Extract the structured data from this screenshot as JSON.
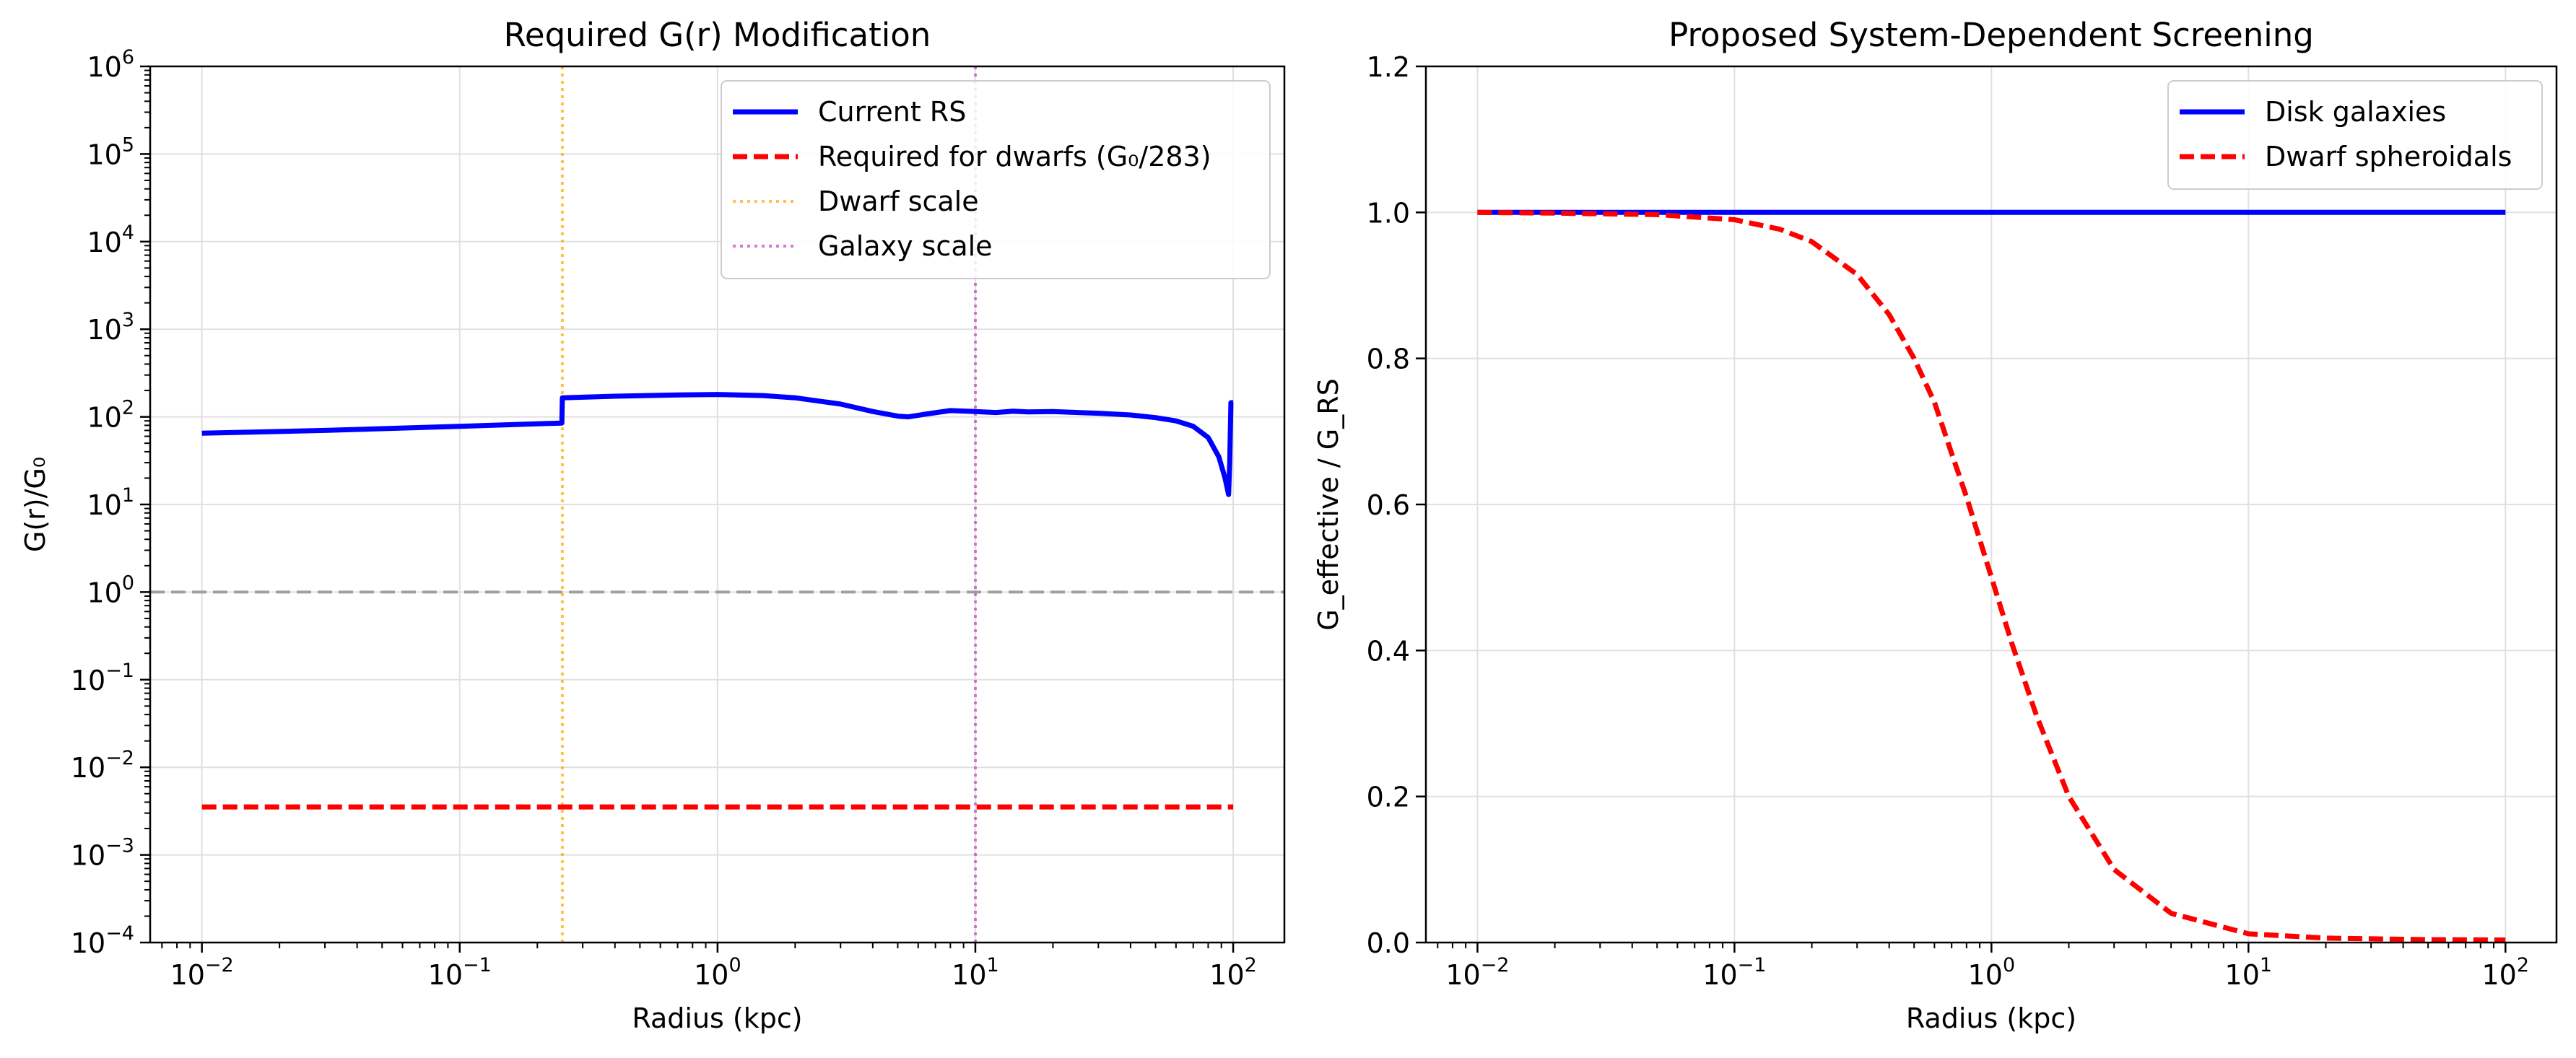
{
  "figure": {
    "background": "#ffffff"
  },
  "chart_data": [
    {
      "type": "line",
      "title": "Required G(r) Modification",
      "xlabel": "Radius (kpc)",
      "ylabel": "G(r)/G₀",
      "xscale": "log",
      "yscale": "log",
      "xlim": [
        0.0063,
        158
      ],
      "ylim": [
        0.0001,
        1000000
      ],
      "grid": true,
      "legend_position": "top-right",
      "xticks": [
        {
          "value": 0.01,
          "base": "10",
          "exp": "−2"
        },
        {
          "value": 0.1,
          "base": "10",
          "exp": "−1"
        },
        {
          "value": 1,
          "base": "10",
          "exp": "0"
        },
        {
          "value": 10,
          "base": "10",
          "exp": "1"
        },
        {
          "value": 100,
          "base": "10",
          "exp": "2"
        }
      ],
      "yticks": [
        {
          "value": 0.0001,
          "base": "10",
          "exp": "−4"
        },
        {
          "value": 0.001,
          "base": "10",
          "exp": "−3"
        },
        {
          "value": 0.01,
          "base": "10",
          "exp": "−2"
        },
        {
          "value": 0.1,
          "base": "10",
          "exp": "−1"
        },
        {
          "value": 1,
          "base": "10",
          "exp": "0"
        },
        {
          "value": 10,
          "base": "10",
          "exp": "1"
        },
        {
          "value": 100,
          "base": "10",
          "exp": "2"
        },
        {
          "value": 1000,
          "base": "10",
          "exp": "3"
        },
        {
          "value": 10000,
          "base": "10",
          "exp": "4"
        },
        {
          "value": 100000,
          "base": "10",
          "exp": "5"
        },
        {
          "value": 1000000,
          "base": "10",
          "exp": "6"
        }
      ],
      "series": [
        {
          "name": "Current RS",
          "color": "#0000ff",
          "style": "solid",
          "x": [
            0.01,
            0.03,
            0.1,
            0.249,
            0.25,
            0.4,
            0.7,
            1.0,
            1.5,
            2.0,
            3.0,
            4.0,
            5.0,
            5.5,
            6.5,
            8.0,
            10.0,
            12.0,
            14.0,
            16.0,
            20.0,
            25.0,
            30.0,
            40.0,
            50.0,
            60.0,
            70.0,
            80.0,
            88.0,
            93.0,
            96.0,
            97.0,
            98.0,
            100.0
          ],
          "y": [
            65,
            70,
            78,
            85,
            165,
            172,
            178,
            180,
            175,
            165,
            140,
            115,
            102,
            100,
            108,
            118,
            115,
            112,
            116,
            114,
            115,
            112,
            110,
            105,
            98,
            90,
            78,
            58,
            35,
            20,
            13,
            30,
            145,
            145
          ]
        },
        {
          "name": "Required for dwarfs (G₀/283)",
          "color": "#ff0000",
          "style": "dashed",
          "x": [
            0.01,
            100.0
          ],
          "y": [
            0.00353,
            0.00353
          ]
        }
      ],
      "reference_lines": [
        {
          "orientation": "vertical",
          "name": "Dwarf scale",
          "x": 0.25,
          "color": "#ffa500",
          "style": "dotted",
          "in_legend": true
        },
        {
          "orientation": "vertical",
          "name": "Galaxy scale",
          "x": 10,
          "color": "#bf40bf",
          "style": "dotted",
          "in_legend": true
        },
        {
          "orientation": "horizontal",
          "y": 1,
          "color": "#808080",
          "style": "dashed",
          "in_legend": false
        }
      ]
    },
    {
      "type": "line",
      "title": "Proposed System-Dependent Screening",
      "xlabel": "Radius (kpc)",
      "ylabel": "G_effective / G_RS",
      "xscale": "log",
      "yscale": "linear",
      "xlim": [
        0.0063,
        158
      ],
      "ylim": [
        0,
        1.2
      ],
      "grid": true,
      "legend_position": "top-right",
      "xticks": [
        {
          "value": 0.01,
          "base": "10",
          "exp": "−2"
        },
        {
          "value": 0.1,
          "base": "10",
          "exp": "−1"
        },
        {
          "value": 1,
          "base": "10",
          "exp": "0"
        },
        {
          "value": 10,
          "base": "10",
          "exp": "1"
        },
        {
          "value": 100,
          "base": "10",
          "exp": "2"
        }
      ],
      "yticks": [
        {
          "value": 0,
          "label": "0.0"
        },
        {
          "value": 0.2,
          "label": "0.2"
        },
        {
          "value": 0.4,
          "label": "0.4"
        },
        {
          "value": 0.6,
          "label": "0.6"
        },
        {
          "value": 0.8,
          "label": "0.8"
        },
        {
          "value": 1.0,
          "label": "1.0"
        },
        {
          "value": 1.2,
          "label": "1.2"
        }
      ],
      "series": [
        {
          "name": "Disk galaxies",
          "color": "#0000ff",
          "style": "solid",
          "x": [
            0.01,
            100.0
          ],
          "y": [
            1.0,
            1.0
          ]
        },
        {
          "name": "Dwarf spheroidals",
          "color": "#ff0000",
          "style": "dashed",
          "x": [
            0.01,
            0.02,
            0.05,
            0.1,
            0.15,
            0.2,
            0.3,
            0.4,
            0.5,
            0.6,
            0.7,
            0.8,
            1.0,
            1.2,
            1.5,
            2.0,
            3.0,
            5.0,
            10.0,
            20.0,
            50.0,
            100.0
          ],
          "y": [
            1.0,
            0.999,
            0.997,
            0.99,
            0.977,
            0.96,
            0.915,
            0.86,
            0.8,
            0.74,
            0.67,
            0.61,
            0.5,
            0.41,
            0.31,
            0.2,
            0.1,
            0.04,
            0.012,
            0.006,
            0.004,
            0.0035
          ]
        }
      ]
    }
  ]
}
